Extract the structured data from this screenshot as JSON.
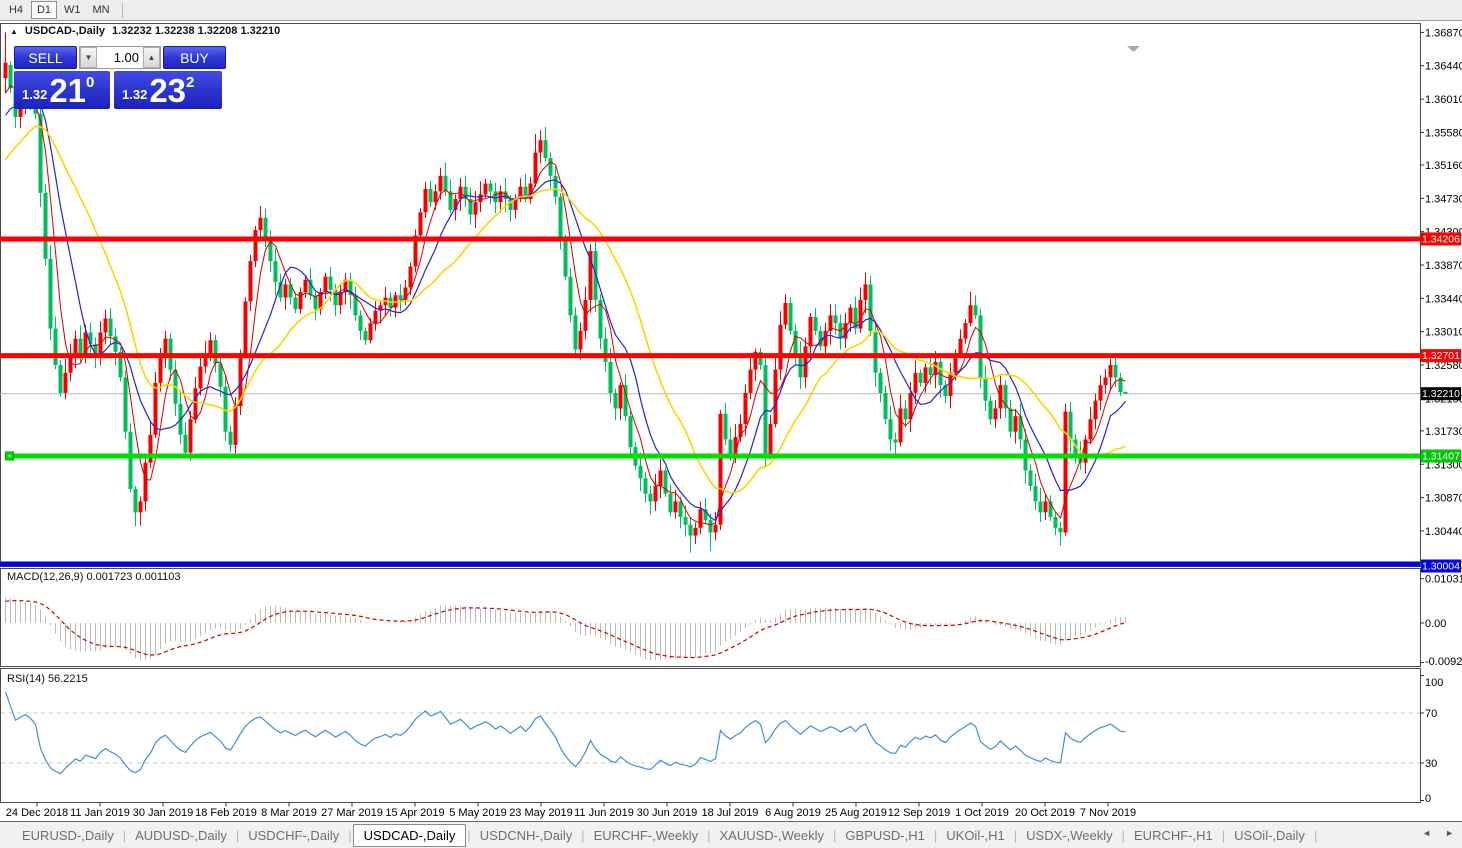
{
  "toolbar": {
    "timeframes": [
      {
        "label": "H4",
        "active": false
      },
      {
        "label": "D1",
        "active": true
      },
      {
        "label": "W1",
        "active": false
      },
      {
        "label": "MN",
        "active": false
      }
    ]
  },
  "chart_header": {
    "collapse_icon": "▲",
    "symbol": "USDCAD-,Daily",
    "ohlc": "1.32232 1.32238 1.32208 1.32210"
  },
  "trade_panel": {
    "sell_label": "SELL",
    "buy_label": "BUY",
    "lot_value": "1.00",
    "down_arrow": "▼",
    "up_arrow": "▲",
    "bid_small": "1.32",
    "bid_big": "21",
    "bid_sup": "0",
    "ask_small": "1.32",
    "ask_big": "23",
    "ask_sup": "2"
  },
  "indicator_labels": {
    "macd": "MACD(12,26,9) 0.001723 0.001103",
    "rsi": "RSI(14) 56.2215"
  },
  "tabs": {
    "items": [
      {
        "label": "EURUSD-,Daily",
        "active": false
      },
      {
        "label": "AUDUSD-,Daily",
        "active": false
      },
      {
        "label": "USDCHF-,Daily",
        "active": false
      },
      {
        "label": "USDCAD-,Daily",
        "active": true
      },
      {
        "label": "USDCNH-,Daily",
        "active": false
      },
      {
        "label": "EURCHF-,Weekly",
        "active": false
      },
      {
        "label": "XAUUSD-,Weekly",
        "active": false
      },
      {
        "label": "GBPUSD-,H1",
        "active": false
      },
      {
        "label": "UKOil-,H1",
        "active": false
      },
      {
        "label": "USDX-,Weekly",
        "active": false
      },
      {
        "label": "EURCHF-,H1",
        "active": false
      },
      {
        "label": "USOil-,Daily",
        "active": false
      }
    ],
    "scroll_left": "◄",
    "scroll_right": "►"
  },
  "chart_data": {
    "type": "candlestick",
    "title": "USDCAD-,Daily",
    "symbol": "USDCAD-",
    "timeframe": "Daily",
    "grid": false,
    "ylim": [
      1.30004,
      1.3687
    ],
    "up_color": "#F40000",
    "down_color": "#00BE5C",
    "x_labels": [
      "24 Dec 2018",
      "11 Jan 2019",
      "30 Jan 2019",
      "18 Feb 2019",
      "8 Mar 2019",
      "27 Mar 2019",
      "15 Apr 2019",
      "5 May 2019",
      "23 May 2019",
      "11 Jun 2019",
      "30 Jun 2019",
      "18 Jul 2019",
      "6 Aug 2019",
      "25 Aug 2019",
      "12 Sep 2019",
      "1 Oct 2019",
      "20 Oct 2019",
      "7 Nov 2019"
    ],
    "y_axis_ticks": [
      "1.36870",
      "1.36440",
      "1.36010",
      "1.35580",
      "1.35160",
      "1.34730",
      "1.34300",
      "1.33870",
      "1.33440",
      "1.33010",
      "1.32580",
      "1.32150",
      "1.31730",
      "1.31300",
      "1.30870",
      "1.30440",
      "1.30010"
    ],
    "current_price": {
      "label": "1.32210",
      "value": 1.3221,
      "bg": "#000000",
      "line_color": "#b8b8b8"
    },
    "levels": [
      {
        "label": "1.34206",
        "value": 1.34206,
        "color": "#FF0000"
      },
      {
        "label": "1.32701",
        "value": 1.32701,
        "color": "#FF0000"
      },
      {
        "label": "1.31407",
        "value": 1.31407,
        "color": "#00DC00"
      },
      {
        "label": "1.30004",
        "value": 1.30004,
        "color": "#0000E0"
      }
    ],
    "preroll_closes": [
      1.334,
      1.3352,
      1.3348,
      1.3365,
      1.338,
      1.3372,
      1.339,
      1.3405,
      1.3398,
      1.3415,
      1.3432,
      1.3425,
      1.3445,
      1.346,
      1.3452,
      1.347,
      1.3488,
      1.348,
      1.3502,
      1.3518,
      1.351,
      1.353,
      1.3548,
      1.354,
      1.356,
      1.3578,
      1.357,
      1.3592,
      1.361,
      1.3628
    ],
    "closes": [
      1.3645,
      1.3615,
      1.3578,
      1.3595,
      1.361,
      1.36,
      1.3582,
      1.348,
      1.3395,
      1.3305,
      1.3258,
      1.3222,
      1.3248,
      1.327,
      1.3292,
      1.327,
      1.33,
      1.3285,
      1.3268,
      1.33,
      1.3318,
      1.3295,
      1.3275,
      1.3242,
      1.3172,
      1.3098,
      1.3068,
      1.3082,
      1.3132,
      1.3168,
      1.3235,
      1.3272,
      1.3292,
      1.3252,
      1.3208,
      1.3168,
      1.3145,
      1.3188,
      1.3228,
      1.3256,
      1.3272,
      1.329,
      1.326,
      1.323,
      1.3172,
      1.3155,
      1.3205,
      1.3272,
      1.334,
      1.3392,
      1.3432,
      1.3448,
      1.3422,
      1.3392,
      1.3365,
      1.3345,
      1.3362,
      1.3345,
      1.333,
      1.3352,
      1.3368,
      1.3348,
      1.333,
      1.3352,
      1.3372,
      1.3355,
      1.3335,
      1.3352,
      1.3368,
      1.3348,
      1.3322,
      1.3302,
      1.329,
      1.3312,
      1.3328,
      1.3335,
      1.3345,
      1.3332,
      1.3348,
      1.3342,
      1.3358,
      1.3385,
      1.3425,
      1.3455,
      1.3485,
      1.3468,
      1.3482,
      1.3502,
      1.3482,
      1.3458,
      1.3472,
      1.3488,
      1.3472,
      1.3452,
      1.3468,
      1.3478,
      1.3492,
      1.3482,
      1.3468,
      1.3482,
      1.3472,
      1.3458,
      1.3472,
      1.3488,
      1.3472,
      1.3492,
      1.3532,
      1.3548,
      1.3525,
      1.3502,
      1.3475,
      1.3422,
      1.3372,
      1.3322,
      1.3278,
      1.3302,
      1.3342,
      1.3405,
      1.3342,
      1.3292,
      1.3262,
      1.3222,
      1.3202,
      1.3232,
      1.3192,
      1.3152,
      1.3128,
      1.3112,
      1.3092,
      1.3082,
      1.3102,
      1.3122,
      1.3092,
      1.3068,
      1.3082,
      1.3062,
      1.3052,
      1.3038,
      1.3048,
      1.3072,
      1.3058,
      1.3042,
      1.3052,
      1.3195,
      1.3162,
      1.3142,
      1.3165,
      1.3182,
      1.3222,
      1.3252,
      1.3275,
      1.3258,
      1.3142,
      1.3182,
      1.3252,
      1.331,
      1.3338,
      1.3302,
      1.3272,
      1.3242,
      1.3282,
      1.332,
      1.3302,
      1.3282,
      1.3302,
      1.3322,
      1.3312,
      1.3292,
      1.3312,
      1.3332,
      1.3305,
      1.3342,
      1.3362,
      1.3302,
      1.3248,
      1.3222,
      1.3188,
      1.3162,
      1.3158,
      1.3202,
      1.3188,
      1.3222,
      1.3248,
      1.3235,
      1.3255,
      1.3245,
      1.3262,
      1.3232,
      1.3218,
      1.3248,
      1.3272,
      1.3292,
      1.3312,
      1.3335,
      1.3322,
      1.3242,
      1.3212,
      1.3188,
      1.3202,
      1.3232,
      1.3202,
      1.3172,
      1.3192,
      1.3162,
      1.3122,
      1.3102,
      1.3082,
      1.3068,
      1.3082,
      1.3062,
      1.3048,
      1.3042,
      1.3198,
      1.3162,
      1.3142,
      1.3132,
      1.3162,
      1.3188,
      1.3212,
      1.3232,
      1.3242,
      1.3258,
      1.3242,
      1.3223,
      1.3221
    ],
    "special_candles": {
      "0": [
        1.3628,
        1.3687,
        1.3608,
        1.3648
      ],
      "6": [
        1.36,
        1.3621,
        1.3575,
        1.3582
      ],
      "7": [
        1.3582,
        1.359,
        1.3462,
        1.348
      ],
      "106": [
        1.3492,
        1.3556,
        1.3488,
        1.3532
      ],
      "107": [
        1.3532,
        1.3561,
        1.3518,
        1.3548
      ],
      "137": [
        1.3052,
        1.3062,
        1.3016,
        1.3038
      ],
      "141": [
        1.3058,
        1.3066,
        1.3018,
        1.3042
      ],
      "143": [
        1.3052,
        1.32,
        1.3045,
        1.3195
      ],
      "211": [
        1.3048,
        1.3056,
        1.3025,
        1.3042
      ],
      "212": [
        1.3042,
        1.3208,
        1.3038,
        1.3198
      ],
      "223": [
        1.3242,
        1.3248,
        1.3218,
        1.3223
      ],
      "224": [
        1.32232,
        1.32238,
        1.32208,
        1.3221
      ]
    },
    "moving_averages": [
      {
        "period": 5,
        "color": "#D40000",
        "width": 1
      },
      {
        "period": 10,
        "color": "#2222D8",
        "width": 1.2
      },
      {
        "period": 21,
        "color": "#FFD400",
        "width": 1.6
      }
    ],
    "macd": {
      "params": "12,26,9",
      "value": 0.001723,
      "signal_value": 0.001103,
      "hist_color": "#BBBBBB",
      "signal_color": "#CC0000",
      "axis_ticks": [
        {
          "label": "0.010311",
          "value": 0.010311
        },
        {
          "label": "0.00",
          "value": 0
        },
        {
          "label": "-0.009203",
          "value": -0.009203
        }
      ]
    },
    "rsi": {
      "period": 14,
      "value": 56.2215,
      "color": "#3E8EDE",
      "levels": [
        70,
        30
      ],
      "axis_ticks": [
        {
          "label": "100",
          "value": 100
        },
        {
          "label": "70",
          "value": 70
        },
        {
          "label": "30",
          "value": 30
        },
        {
          "label": "0",
          "value": 0
        }
      ]
    }
  }
}
